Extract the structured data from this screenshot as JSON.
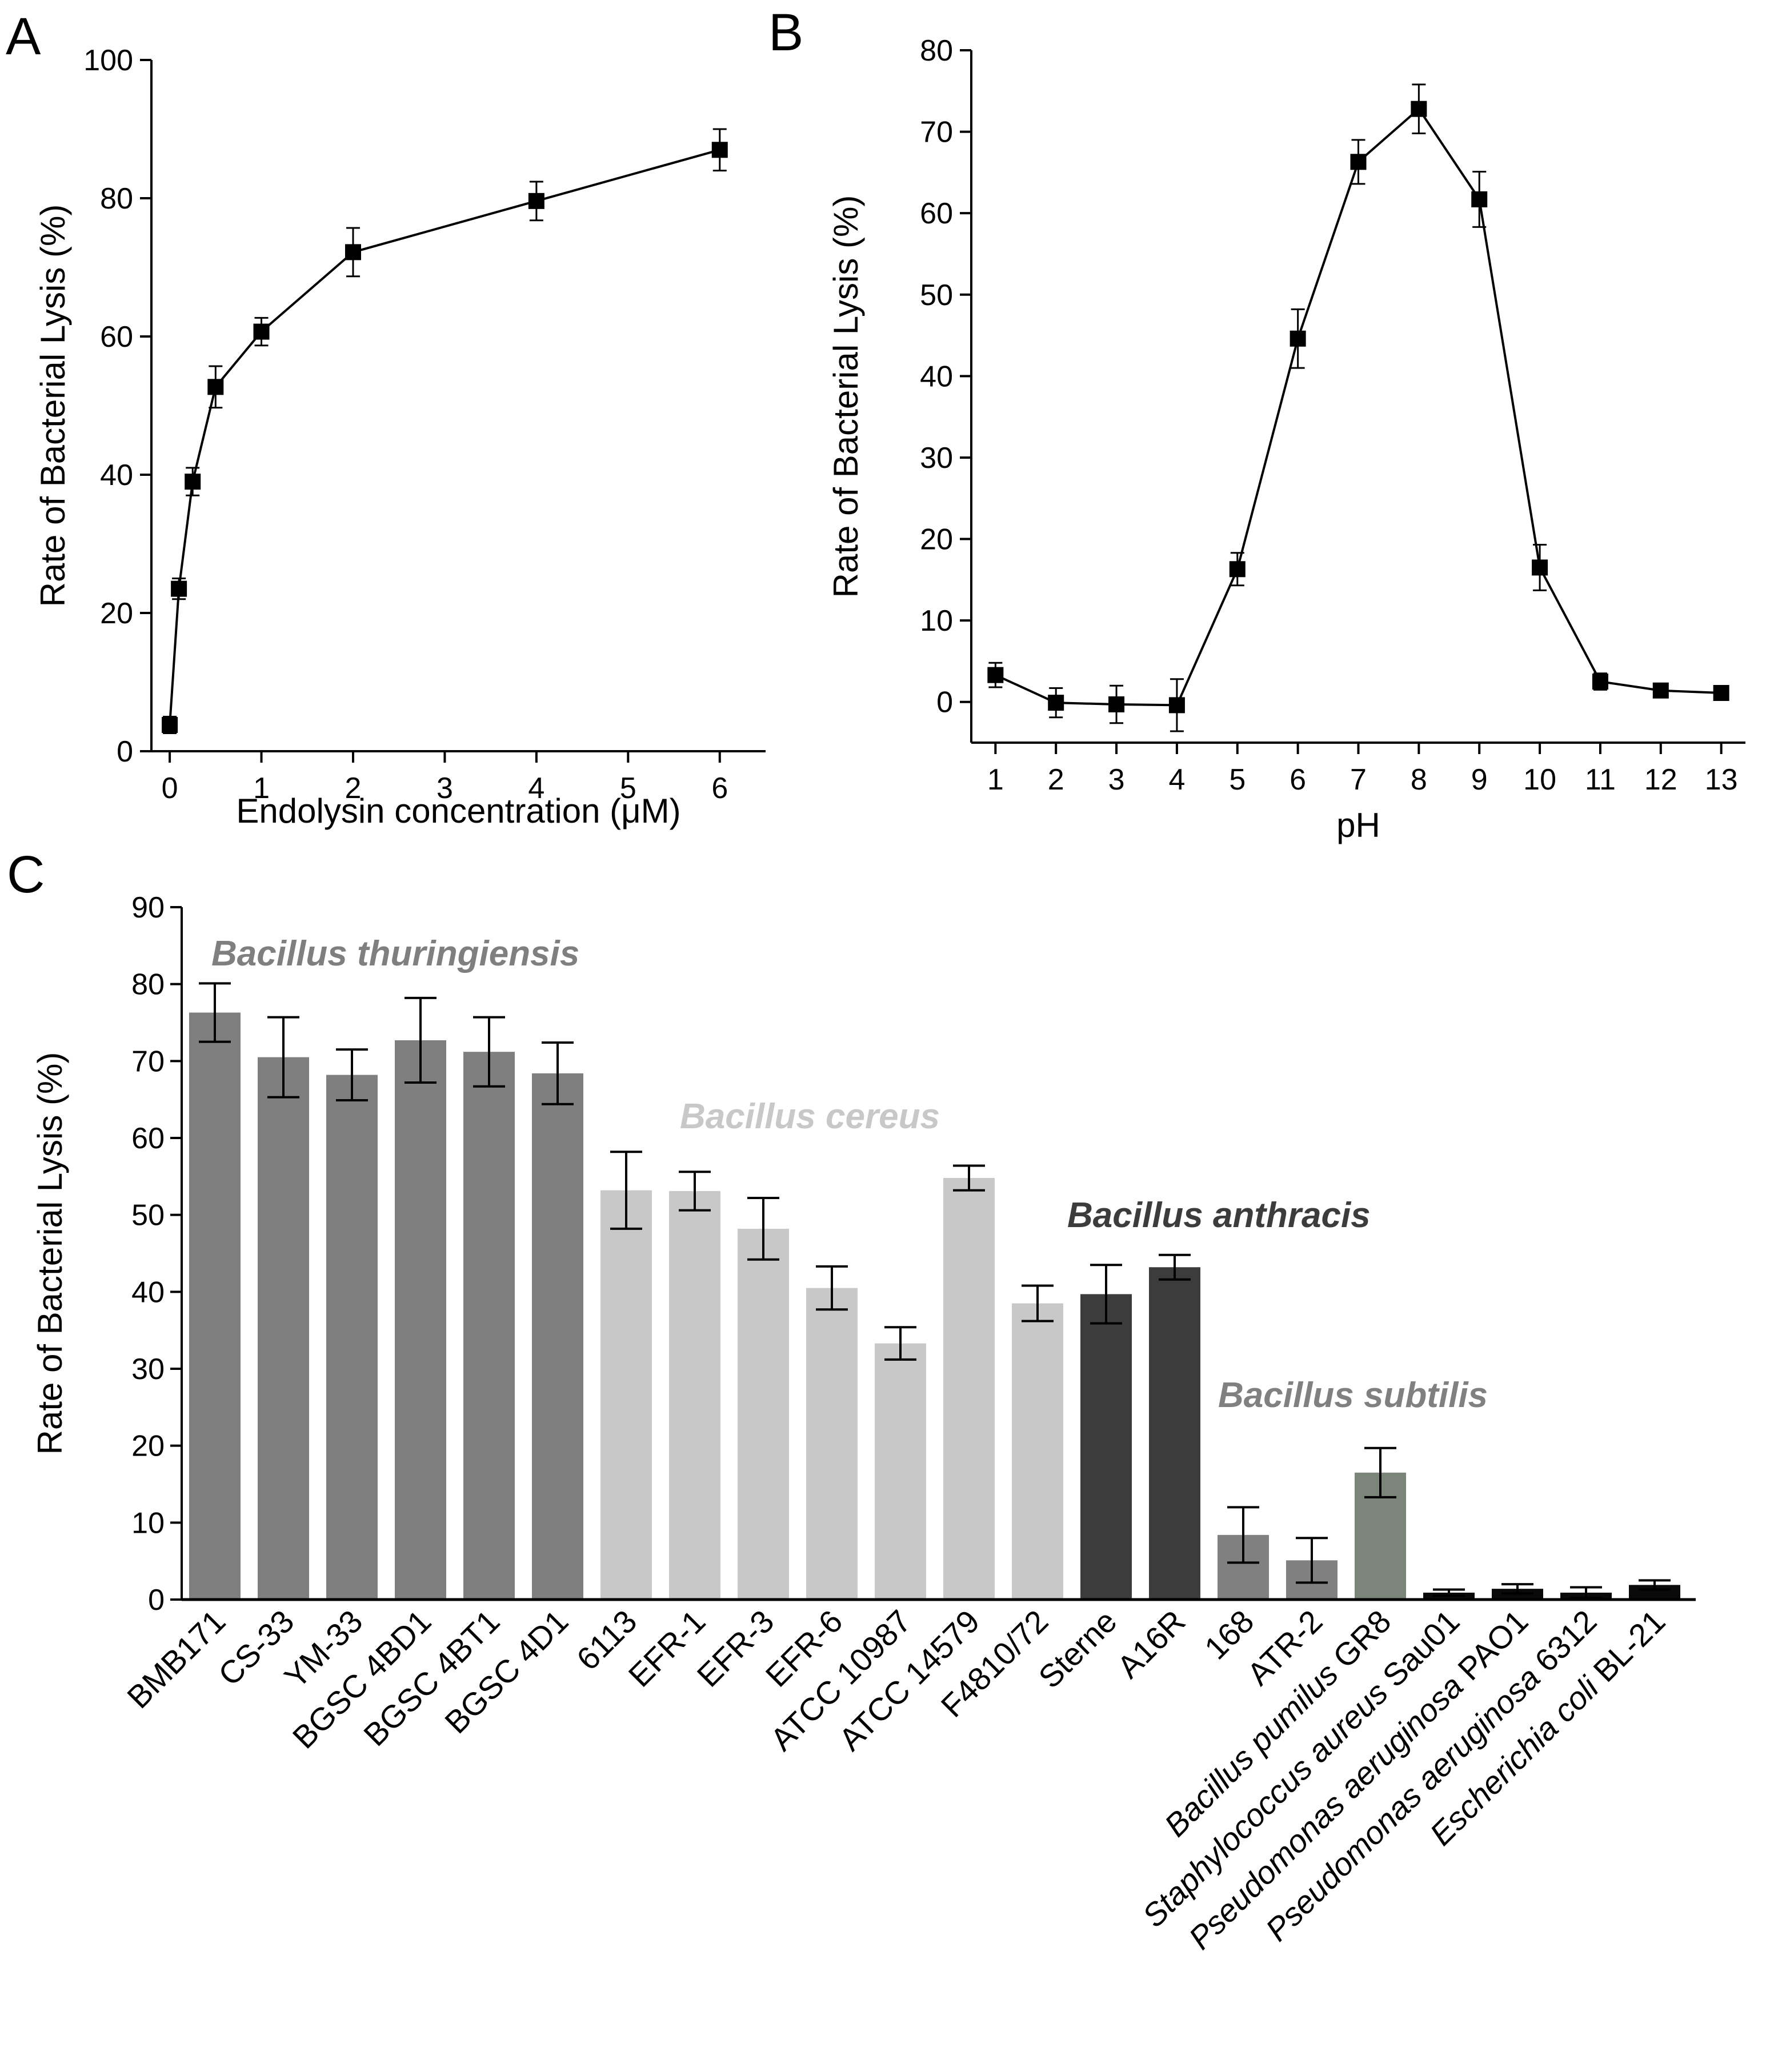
{
  "chart_data": [
    {
      "panel": "A",
      "type": "line",
      "xlabel": "Endolysin concentration (μM)",
      "ylabel": "Rate of Bacterial Lysis (%)",
      "xlim": [
        -0.2,
        6.5
      ],
      "ylim": [
        0,
        100
      ],
      "xticks": [
        0,
        1,
        2,
        3,
        4,
        5,
        6
      ],
      "yticks": [
        0,
        20,
        40,
        60,
        80,
        100
      ],
      "points": [
        {
          "x": 0,
          "y": 3.8,
          "err": 1.2
        },
        {
          "x": 0.1,
          "y": 23.5,
          "err": 1.5
        },
        {
          "x": 0.25,
          "y": 39,
          "err": 2
        },
        {
          "x": 0.5,
          "y": 52.7,
          "err": 3
        },
        {
          "x": 1,
          "y": 60.7,
          "err": 2
        },
        {
          "x": 2,
          "y": 72.2,
          "err": 3.5
        },
        {
          "x": 4,
          "y": 79.6,
          "err": 2.8
        },
        {
          "x": 6,
          "y": 87,
          "err": 3
        }
      ]
    },
    {
      "panel": "B",
      "type": "line",
      "xlabel": "pH",
      "ylabel": "Rate of Bacterial Lysis (%)",
      "xlim": [
        0.6,
        13.4
      ],
      "ylim": [
        -5,
        80
      ],
      "xticks": [
        1,
        2,
        3,
        4,
        5,
        6,
        7,
        8,
        9,
        10,
        11,
        12,
        13
      ],
      "yticks": [
        0,
        10,
        20,
        30,
        40,
        50,
        60,
        70,
        80
      ],
      "points": [
        {
          "x": 1,
          "y": 3.3,
          "err": 1.5
        },
        {
          "x": 2,
          "y": -0.1,
          "err": 1.8
        },
        {
          "x": 3,
          "y": -0.3,
          "err": 2.3
        },
        {
          "x": 4,
          "y": -0.4,
          "err": 3.2
        },
        {
          "x": 5,
          "y": 16.3,
          "err": 2
        },
        {
          "x": 6,
          "y": 44.6,
          "err": 3.6
        },
        {
          "x": 7,
          "y": 66.3,
          "err": 2.7
        },
        {
          "x": 8,
          "y": 72.8,
          "err": 3
        },
        {
          "x": 9,
          "y": 61.7,
          "err": 3.4
        },
        {
          "x": 10,
          "y": 16.5,
          "err": 2.8
        },
        {
          "x": 11,
          "y": 2.5,
          "err": 1
        },
        {
          "x": 12,
          "y": 1.4,
          "err": 0.4
        },
        {
          "x": 13,
          "y": 1.1,
          "err": 0.3
        }
      ]
    },
    {
      "panel": "C",
      "type": "bar",
      "ylabel": "Rate of Bacterial Lysis (%)",
      "ylim": [
        0,
        90
      ],
      "yticks": [
        0,
        10,
        20,
        30,
        40,
        50,
        60,
        70,
        80,
        90
      ],
      "groups": [
        {
          "name": "Bacillus thuringiensis",
          "color": "#7f7f7f"
        },
        {
          "name": "Bacillus cereus",
          "color": "#c8c8c8"
        },
        {
          "name": "Bacillus anthracis",
          "color": "#3c3c3c"
        },
        {
          "name": "Bacillus subtilis",
          "color": "#808080"
        }
      ],
      "bars": [
        {
          "label": "BMB171",
          "italic": "",
          "value": 76.3,
          "err": 3.8,
          "color": "#7f7f7f"
        },
        {
          "label": "CS-33",
          "italic": "",
          "value": 70.5,
          "err": 5.2,
          "color": "#7f7f7f"
        },
        {
          "label": "YM-33",
          "italic": "",
          "value": 68.2,
          "err": 3.3,
          "color": "#7f7f7f"
        },
        {
          "label": "BGSC 4BD1",
          "italic": "",
          "value": 72.7,
          "err": 5.5,
          "color": "#7f7f7f"
        },
        {
          "label": "BGSC 4BT1",
          "italic": "",
          "value": 71.2,
          "err": 4.5,
          "color": "#7f7f7f"
        },
        {
          "label": "BGSC 4D1",
          "italic": "",
          "value": 68.4,
          "err": 4,
          "color": "#7f7f7f"
        },
        {
          "label": "6113",
          "italic": "",
          "value": 53.2,
          "err": 5,
          "color": "#c8c8c8"
        },
        {
          "label": "EFR-1",
          "italic": "",
          "value": 53.1,
          "err": 2.5,
          "color": "#c8c8c8"
        },
        {
          "label": "EFR-3",
          "italic": "",
          "value": 48.2,
          "err": 4,
          "color": "#c8c8c8"
        },
        {
          "label": "EFR-6",
          "italic": "",
          "value": 40.5,
          "err": 2.8,
          "color": "#c8c8c8"
        },
        {
          "label": "ATCC 10987",
          "italic": "",
          "value": 33.3,
          "err": 2.1,
          "color": "#c8c8c8"
        },
        {
          "label": "ATCC 14579",
          "italic": "",
          "value": 54.8,
          "err": 1.6,
          "color": "#c8c8c8"
        },
        {
          "label": "F4810/72",
          "italic": "",
          "value": 38.5,
          "err": 2.3,
          "color": "#c8c8c8"
        },
        {
          "label": "Sterne",
          "italic": "",
          "value": 39.7,
          "err": 3.8,
          "color": "#3c3c3c"
        },
        {
          "label": "A16R",
          "italic": "",
          "value": 43.2,
          "err": 1.6,
          "color": "#3c3c3c"
        },
        {
          "label": "168",
          "italic": "",
          "value": 8.4,
          "err": 3.6,
          "color": "#808080"
        },
        {
          "label": "ATR-2",
          "italic": "",
          "value": 5.1,
          "err": 2.9,
          "color": "#808080"
        },
        {
          "label": "GR8",
          "italic": "Bacillus pumilus",
          "value": 16.5,
          "err": 3.2,
          "color": "#7b857a"
        },
        {
          "label": "Sau01",
          "italic": "Staphylococcus aureus",
          "value": 0.9,
          "err": 0.4,
          "color": "#0a0a0a"
        },
        {
          "label": "PAO1",
          "italic": "Pseudomonas aeruginosa",
          "value": 1.4,
          "err": 0.6,
          "color": "#0a0a0a"
        },
        {
          "label": "6312",
          "italic": "Pseudomonas aeruginosa",
          "value": 0.9,
          "err": 0.7,
          "color": "#0a0a0a"
        },
        {
          "label": "BL-21",
          "italic": "Escherichia coli",
          "value": 1.9,
          "err": 0.6,
          "color": "#0a0a0a"
        }
      ]
    }
  ]
}
